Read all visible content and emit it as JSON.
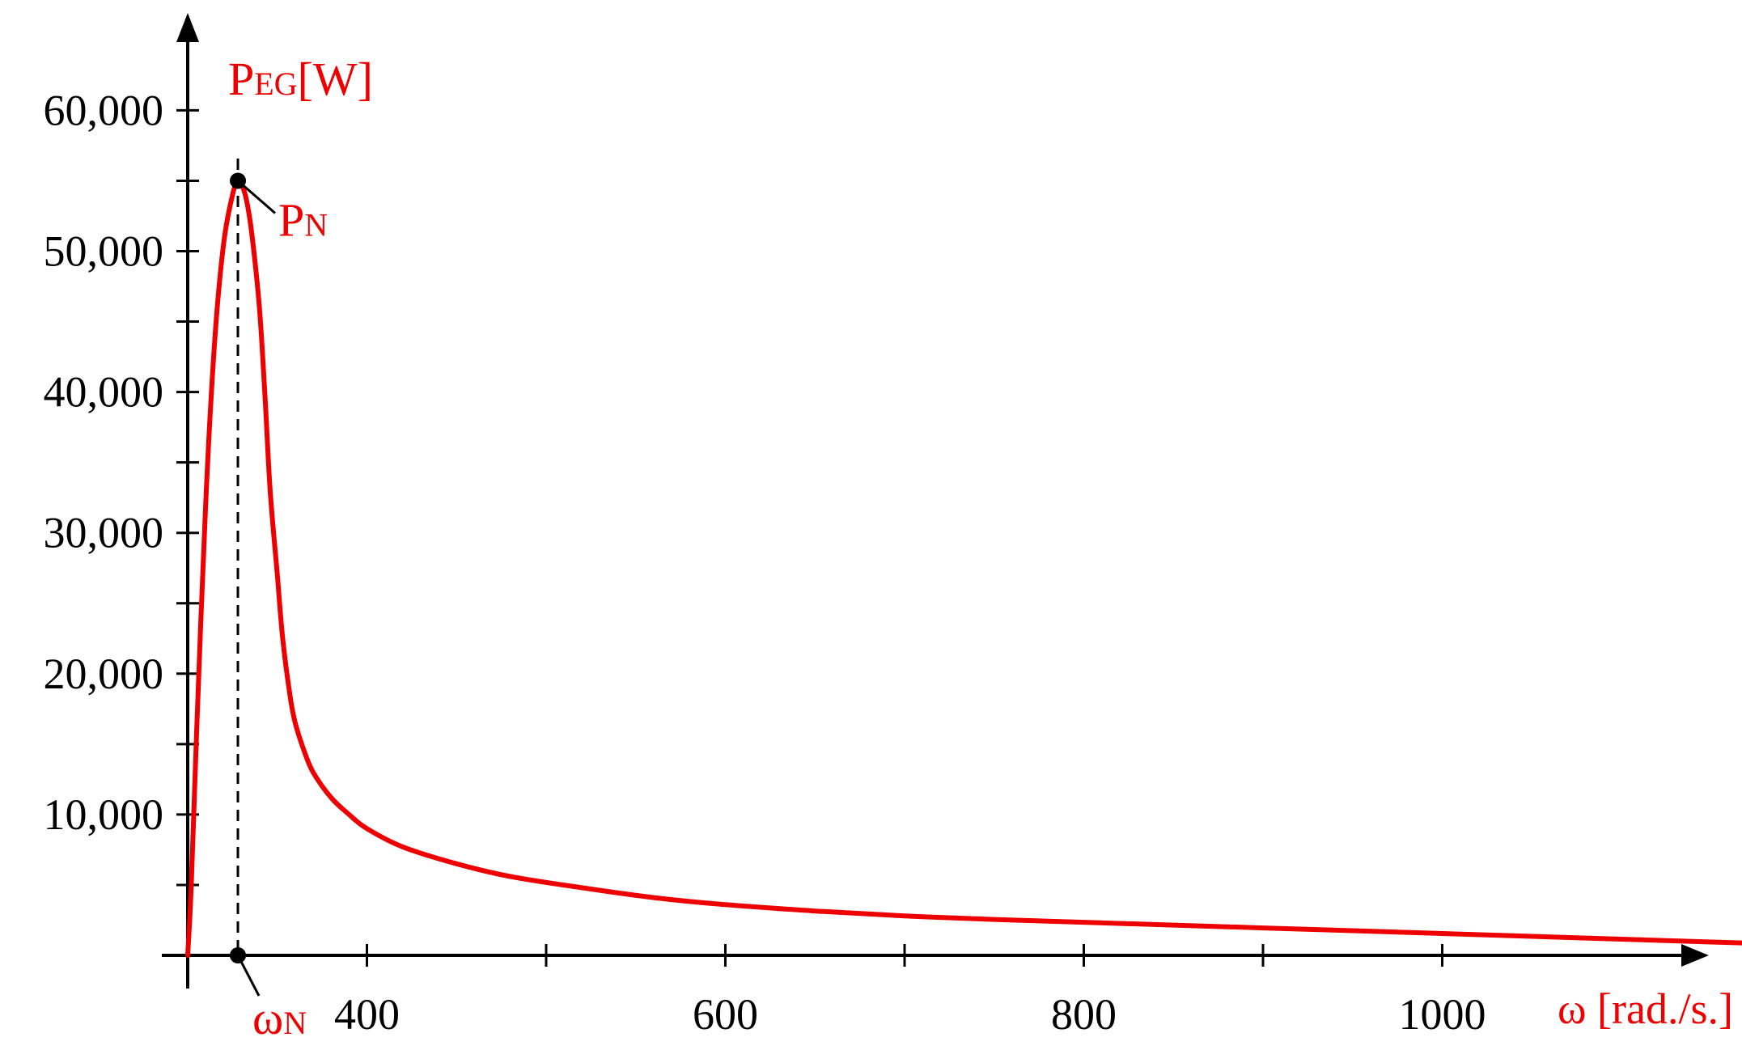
{
  "chart_data": {
    "type": "line",
    "title": "",
    "ylabel": {
      "main": "P",
      "sub": "EG",
      "unit": "[W]"
    },
    "xlabel": "ω [rad./s.]",
    "xlim": [
      200,
      1230
    ],
    "ylim": [
      0,
      66000
    ],
    "x_ticks": [
      300,
      400,
      500,
      600,
      700,
      800,
      900,
      1000
    ],
    "x_tick_labels": [
      {
        "value": 400,
        "label": "400"
      },
      {
        "value": 600,
        "label": "600"
      },
      {
        "value": 800,
        "label": "800"
      },
      {
        "value": 1000,
        "label": "1000"
      }
    ],
    "y_ticks": [
      5000,
      10000,
      15000,
      20000,
      25000,
      30000,
      35000,
      40000,
      45000,
      50000,
      55000,
      60000
    ],
    "y_tick_labels": [
      {
        "value": 10000,
        "label": "10,000"
      },
      {
        "value": 20000,
        "label": "20,000"
      },
      {
        "value": 30000,
        "label": "30,000"
      },
      {
        "value": 40000,
        "label": "40,000"
      },
      {
        "value": 50000,
        "label": "50,000"
      },
      {
        "value": 60000,
        "label": "60,000"
      }
    ],
    "series": [
      {
        "color": "#ee0000",
        "x": [
          300,
          302,
          305,
          310,
          315,
          320,
          325,
          328,
          330,
          333,
          336,
          340,
          343,
          346,
          350,
          353,
          357,
          360,
          365,
          370,
          380,
          390,
          400,
          420,
          450,
          480,
          520,
          560,
          600,
          650,
          700,
          750,
          800,
          850,
          900,
          950,
          1000,
          1050,
          1100,
          1150,
          1200
        ],
        "y": [
          0,
          5000,
          16000,
          32000,
          43500,
          50500,
          54000,
          55000,
          54800,
          53500,
          51000,
          46000,
          40000,
          33000,
          27000,
          22500,
          18500,
          16500,
          14500,
          13000,
          11200,
          10000,
          9000,
          7700,
          6500,
          5600,
          4800,
          4100,
          3600,
          3150,
          2800,
          2550,
          2350,
          2150,
          1950,
          1750,
          1550,
          1350,
          1150,
          950,
          750
        ]
      }
    ],
    "annotations": [
      {
        "text_main": "P",
        "text_sub": "N",
        "x": 328,
        "y": 55000
      },
      {
        "text_main": "ω",
        "text_sub": "N",
        "x": 328,
        "y": 0
      }
    ],
    "grid": false,
    "legend": "none"
  }
}
